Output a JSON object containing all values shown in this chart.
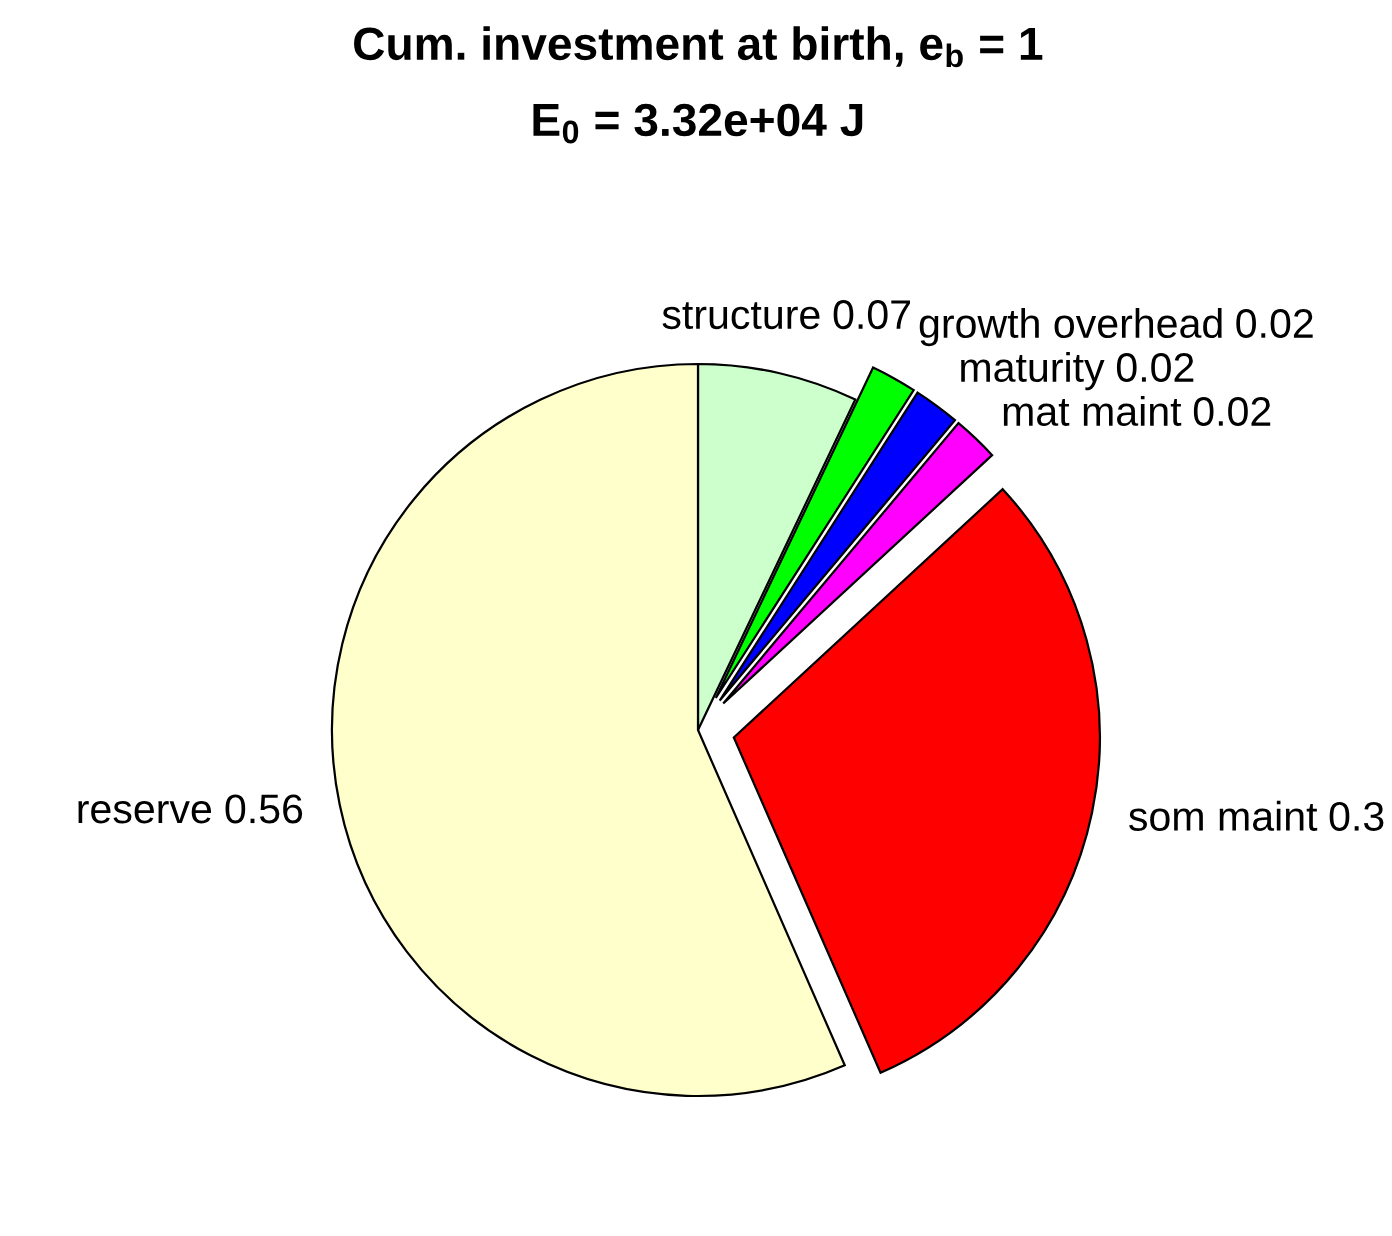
{
  "chart_data": {
    "type": "pie",
    "title": "Cum. investment at birth, e$_{b}$ = 1",
    "subtitle": "E$_{0}$ = 3.32e+04 J",
    "categories": [
      "structure",
      "growth overhead",
      "maturity",
      "mat maint",
      "som maint",
      "reserve"
    ],
    "values": [
      0.07,
      0.02,
      0.02,
      0.02,
      0.3,
      0.56
    ],
    "colors": [
      "#ccffcc",
      "#00ff00",
      "#0000ff",
      "#ff00ff",
      "#ff0000",
      "#ffffcc"
    ],
    "data_labels": true
  }
}
